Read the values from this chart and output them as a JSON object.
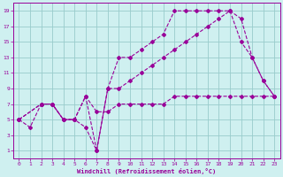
{
  "xlabel": "Windchill (Refroidissement éolien,°C)",
  "xlim": [
    -0.5,
    23.5
  ],
  "ylim": [
    0,
    20
  ],
  "xticks": [
    0,
    1,
    2,
    3,
    4,
    5,
    6,
    7,
    8,
    9,
    10,
    11,
    12,
    13,
    14,
    15,
    16,
    17,
    18,
    19,
    20,
    21,
    22,
    23
  ],
  "yticks": [
    1,
    3,
    5,
    7,
    9,
    11,
    13,
    15,
    17,
    19
  ],
  "bg_color": "#cff0f0",
  "line_color": "#990099",
  "grid_color": "#99cccc",
  "series": [
    {
      "x": [
        0,
        1,
        2,
        3,
        4,
        5,
        6,
        7,
        8,
        9,
        10,
        11,
        12,
        13,
        14,
        15,
        16,
        17,
        18,
        19,
        20,
        21,
        22,
        23
      ],
      "y": [
        5,
        4,
        7,
        7,
        5,
        5,
        4,
        1,
        9,
        13,
        13,
        14,
        15,
        16,
        19,
        19,
        19,
        19,
        19,
        19,
        18,
        13,
        10,
        8
      ]
    },
    {
      "x": [
        0,
        2,
        3,
        4,
        5,
        6,
        7,
        8,
        9,
        10,
        11,
        12,
        13,
        14,
        15,
        16,
        17,
        18,
        19,
        20,
        21,
        22,
        23
      ],
      "y": [
        5,
        7,
        7,
        5,
        5,
        8,
        1,
        9,
        9,
        10,
        11,
        12,
        13,
        14,
        15,
        16,
        17,
        18,
        19,
        15,
        13,
        10,
        8
      ]
    },
    {
      "x": [
        0,
        2,
        3,
        4,
        5,
        6,
        7,
        8,
        9,
        10,
        11,
        12,
        13,
        14,
        15,
        16,
        17,
        18,
        19,
        20,
        21,
        22,
        23
      ],
      "y": [
        5,
        7,
        7,
        5,
        5,
        8,
        6,
        6,
        7,
        7,
        7,
        7,
        7,
        8,
        8,
        8,
        8,
        8,
        8,
        8,
        8,
        8,
        8
      ]
    }
  ]
}
